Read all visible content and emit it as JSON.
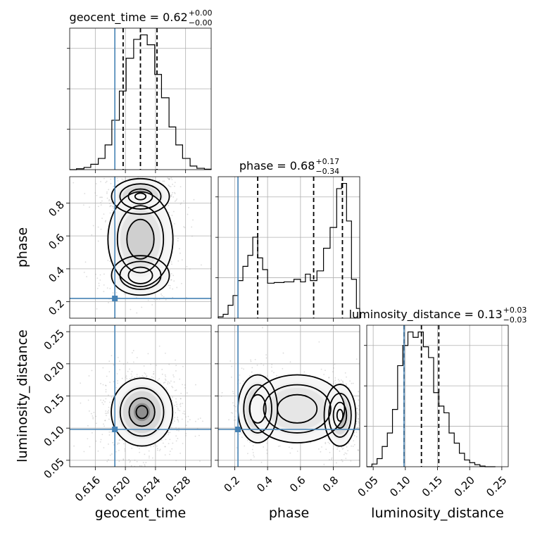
{
  "chart_data": {
    "type": "corner",
    "parameters": [
      "geocent_time",
      "phase",
      "luminosity_distance"
    ],
    "truth": {
      "geocent_time": 0.6186,
      "phase": 0.22,
      "luminosity_distance": 0.098
    },
    "colors": {
      "truth": "#4682b4",
      "hist": "#000000",
      "quantile": "#000000"
    },
    "grid": true,
    "ranges": {
      "geocent_time": [
        0.6126,
        0.6314
      ],
      "phase": [
        0.1,
        0.96
      ],
      "luminosity_distance": [
        0.04,
        0.26
      ]
    },
    "ticks": {
      "geocent_time": [
        0.616,
        0.62,
        0.624,
        0.628
      ],
      "phase": [
        0.2,
        0.4,
        0.6,
        0.8
      ],
      "luminosity_distance": [
        0.05,
        0.1,
        0.15,
        0.2,
        0.25
      ]
    },
    "tick_labels": {
      "geocent_time": [
        "0.616",
        "0.620",
        "0.624",
        "0.628"
      ],
      "phase": [
        "0.2",
        "0.4",
        "0.6",
        "0.8"
      ],
      "luminosity_distance": [
        "0.05",
        "0.10",
        "0.15",
        "0.20",
        "0.25"
      ]
    },
    "marginals": [
      {
        "param": "geocent_time",
        "title": {
          "text": "geocent_time = 0.62",
          "plus": "+0.00",
          "minus": "−0.00"
        },
        "quantiles": [
          0.6197,
          0.622,
          0.6242
        ],
        "bins": [
          0.6126,
          0.6135,
          0.6145,
          0.6154,
          0.6164,
          0.6173,
          0.6182,
          0.6192,
          0.6201,
          0.6211,
          0.622,
          0.6229,
          0.6239,
          0.6248,
          0.6258,
          0.6267,
          0.6276,
          0.6286,
          0.6295,
          0.6305,
          0.6314
        ],
        "counts": [
          0,
          2,
          5,
          12,
          25,
          55,
          110,
          175,
          248,
          290,
          300,
          278,
          212,
          160,
          95,
          55,
          25,
          8,
          3,
          1
        ]
      },
      {
        "param": "phase",
        "title": {
          "text": "phase = 0.68",
          "plus": "+0.17",
          "minus": "−0.34"
        },
        "quantiles": [
          0.34,
          0.68,
          0.855
        ],
        "bins": [
          0.1,
          0.13,
          0.16,
          0.19,
          0.22,
          0.25,
          0.28,
          0.31,
          0.34,
          0.37,
          0.4,
          0.44,
          0.5,
          0.56,
          0.6,
          0.63,
          0.66,
          0.7,
          0.74,
          0.78,
          0.82,
          0.85,
          0.88,
          0.91,
          0.94,
          0.96
        ],
        "counts": [
          2,
          6,
          20,
          35,
          58,
          80,
          97,
          125,
          93,
          75,
          54,
          55,
          56,
          60,
          56,
          68,
          58,
          73,
          108,
          140,
          200,
          208,
          150,
          60,
          15
        ]
      },
      {
        "param": "luminosity_distance",
        "title": {
          "text": "luminosity_distance = 0.13",
          "plus": "+0.03",
          "minus": "−0.03"
        },
        "quantiles": [
          0.098,
          0.125,
          0.152
        ],
        "bins": [
          0.04,
          0.048,
          0.056,
          0.064,
          0.072,
          0.08,
          0.088,
          0.096,
          0.104,
          0.112,
          0.12,
          0.128,
          0.136,
          0.144,
          0.152,
          0.16,
          0.168,
          0.176,
          0.184,
          0.192,
          0.2,
          0.208,
          0.216,
          0.224,
          0.232,
          0.24
        ],
        "counts": [
          0,
          4,
          12,
          30,
          50,
          85,
          150,
          180,
          200,
          192,
          200,
          178,
          162,
          110,
          90,
          80,
          50,
          35,
          20,
          10,
          6,
          3,
          1,
          0,
          0
        ]
      }
    ],
    "joints": [
      {
        "x": "geocent_time",
        "y": "phase",
        "density_peaks": [
          {
            "x": 0.622,
            "y": 0.84,
            "sx": 0.0016,
            "sy": 0.045,
            "w": 0.55
          },
          {
            "x": 0.622,
            "y": 0.36,
            "sx": 0.0016,
            "sy": 0.05,
            "w": 0.35
          },
          {
            "x": 0.622,
            "y": 0.58,
            "sx": 0.0018,
            "sy": 0.12,
            "w": 0.25
          }
        ]
      },
      {
        "x": "geocent_time",
        "y": "luminosity_distance",
        "density_peaks": [
          {
            "x": 0.6222,
            "y": 0.125,
            "sx": 0.0017,
            "sy": 0.022,
            "w": 1.0
          }
        ]
      },
      {
        "x": "phase",
        "y": "luminosity_distance",
        "density_peaks": [
          {
            "x": 0.84,
            "y": 0.12,
            "sx": 0.04,
            "sy": 0.02,
            "w": 0.6
          },
          {
            "x": 0.34,
            "y": 0.13,
            "sx": 0.05,
            "sy": 0.022,
            "w": 0.35
          },
          {
            "x": 0.58,
            "y": 0.13,
            "sx": 0.12,
            "sy": 0.022,
            "w": 0.2
          }
        ]
      }
    ]
  }
}
